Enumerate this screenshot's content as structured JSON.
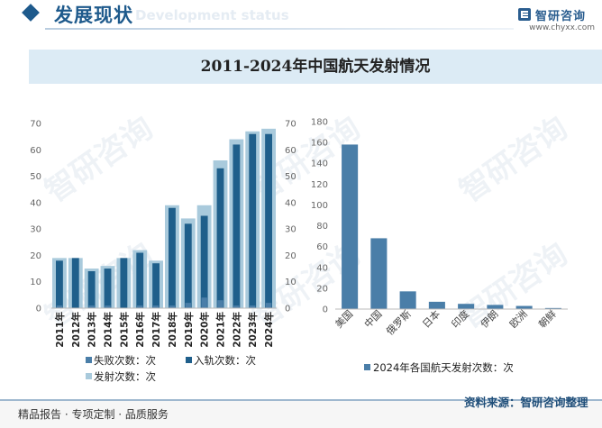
{
  "header": {
    "section_title": "发展现状",
    "section_ghost": "Development status",
    "brand_name": "智研咨询",
    "brand_url": "www.chyxx.com"
  },
  "chart_title": "2011-2024年中国航天发射情况",
  "chart_data": [
    {
      "type": "bar",
      "categories": [
        "2011年",
        "2012年",
        "2013年",
        "2014年",
        "2015年",
        "2016年",
        "2017年",
        "2018年",
        "2019年",
        "2020年",
        "2021年",
        "2022年",
        "2023年",
        "2024年"
      ],
      "series": [
        {
          "name": "失败次数：次",
          "color": "#4a7ea8",
          "values": [
            1,
            0,
            1,
            1,
            0,
            1,
            1,
            1,
            2,
            4,
            3,
            1,
            1,
            2
          ]
        },
        {
          "name": "入轨次数：次",
          "color": "#1f5f8b",
          "values": [
            18,
            19,
            14,
            15,
            19,
            21,
            17,
            38,
            32,
            35,
            53,
            62,
            66,
            66
          ]
        },
        {
          "name": "发射次数：次",
          "color": "#a9cadc",
          "values": [
            19,
            19,
            15,
            16,
            19,
            22,
            18,
            39,
            34,
            39,
            56,
            64,
            67,
            68
          ]
        }
      ],
      "yticks": [
        0,
        10,
        20,
        30,
        40,
        50,
        60,
        70
      ],
      "ylim": [
        0,
        70
      ],
      "legend_position": "bottom"
    },
    {
      "type": "bar",
      "categories": [
        "美国",
        "中国",
        "俄罗斯",
        "日本",
        "印度",
        "伊朗",
        "欧洲",
        "朝鲜"
      ],
      "series": [
        {
          "name": "2024年各国航天发射次数：次",
          "color": "#4a7ea8",
          "values": [
            158,
            68,
            17,
            7,
            5,
            4,
            3,
            1
          ]
        }
      ],
      "yticks": [
        0,
        20,
        40,
        60,
        80,
        100,
        120,
        140,
        160,
        180
      ],
      "ylim": [
        0,
        180
      ],
      "legend_position": "bottom"
    }
  ],
  "footer": {
    "left_text": "精品报告 · 专项定制 · 品质服务",
    "source_text": "资料来源：智研咨询整理"
  },
  "watermark_text": "智研咨询"
}
